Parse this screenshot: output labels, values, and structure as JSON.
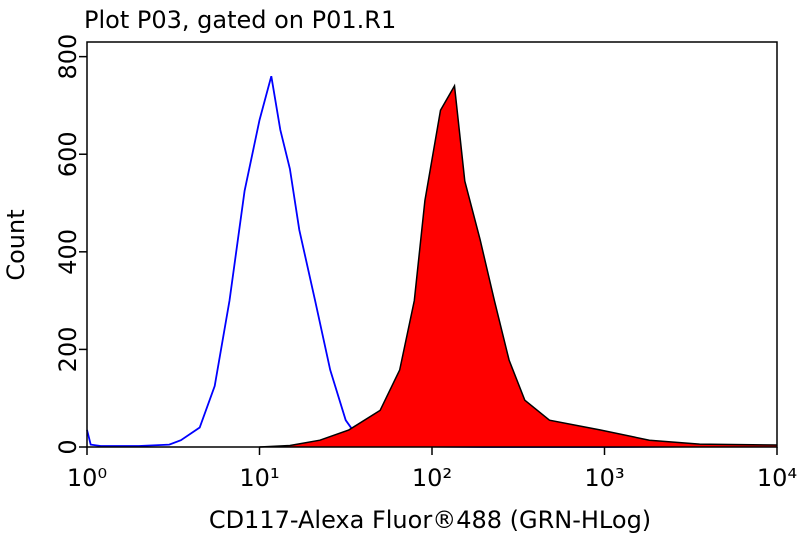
{
  "chart_data": {
    "type": "histogram-overlay",
    "title": "Plot P03, gated on P01.R1",
    "x_label": "CD117-Alexa Fluor®488 (GRN-HLog)",
    "y_label": "Count",
    "log_x": true,
    "xlim": [
      1,
      10000
    ],
    "xticks": [
      {
        "value": 1,
        "label": "10⁰"
      },
      {
        "value": 10,
        "label": "10¹"
      },
      {
        "value": 100,
        "label": "10²"
      },
      {
        "value": 1000,
        "label": "10³"
      },
      {
        "value": 10000,
        "label": "10⁴"
      }
    ],
    "ylim": [
      0,
      830
    ],
    "yticks": [
      0,
      200,
      400,
      600,
      800
    ],
    "series": [
      {
        "color": "#0000ff",
        "filled": false,
        "x": [
          1,
          1.05,
          1.2,
          2,
          3,
          3.5,
          4.5,
          5.5,
          6.7,
          8.2,
          10,
          11.7,
          13.2,
          15,
          17,
          21,
          25.7,
          31.6,
          38,
          50,
          80,
          200,
          1000,
          10000
        ],
        "values": [
          35,
          5,
          2,
          2,
          5,
          14,
          40,
          125,
          300,
          525,
          670,
          760,
          650,
          570,
          445,
          300,
          158,
          55,
          15,
          4,
          1,
          0,
          0,
          2
        ]
      },
      {
        "color": "#ff0000",
        "filled": true,
        "x": [
          10,
          15,
          22.4,
          33,
          50,
          65,
          79,
          91,
          112,
          135,
          155,
          190,
          230,
          280,
          345,
          480,
          940,
          1820,
          3560,
          10000
        ],
        "values": [
          0,
          3,
          14,
          35,
          75,
          158,
          300,
          505,
          690,
          740,
          545,
          425,
          300,
          178,
          96,
          55,
          35,
          14,
          6,
          4
        ]
      }
    ]
  }
}
